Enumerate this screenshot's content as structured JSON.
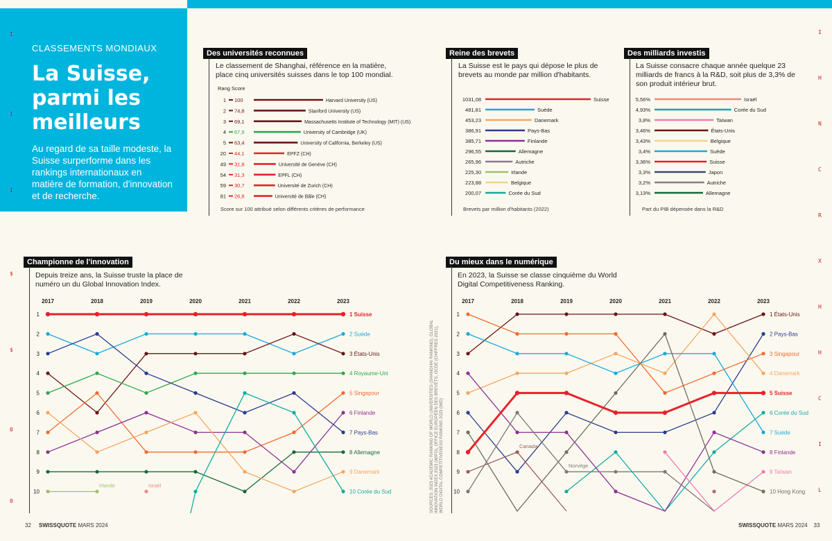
{
  "hero": {
    "kicker": "CLASSEMENTS MONDIAUX",
    "title_lines": [
      "La Suisse,",
      "parmi les",
      "meilleurs"
    ],
    "lead": "Au regard de sa taille modeste, la Suisse surperforme dans les rankings internationaux en matière de formation, d'innovation et de recherche."
  },
  "universities": {
    "label": "Des universités reconnues",
    "description": "Le classement de Shanghai, référence en la matière, place cinq universités suisses dans le top 100 mondial.",
    "col_rank": "Rang",
    "col_score": "Score",
    "footnote": "Score sur 100 attribué selon différents critères de performance"
  },
  "patents": {
    "label": "Reine des brevets",
    "description": "La Suisse est le pays qui dépose le plus de brevets au monde par million d'habitants.",
    "footnote": "Brevets par million d'habitants (2022)"
  },
  "rd": {
    "label": "Des milliards investis",
    "description": "La Suisse consacre chaque année quelque 23 milliards de francs à la R&D, soit plus de 3,3% de son produit intérieur brut.",
    "footnote": "Part du PIB dépensée dans la R&D"
  },
  "innovation": {
    "label": "Championne de l'innovation",
    "description": "Depuis treize ans, la Suisse truste la place de numéro un du Global Innovation Index."
  },
  "digital": {
    "label": "Du mieux dans le numérique",
    "description": "En 2023, la Suisse se classe cinquième du World Digital Competitiveness Ranking."
  },
  "sources": "SOURCES: 2023 ACADEMIC RANKING OF WORLD UNIVERSITIES (SHANGHAI RANKING), GLOBAL INNOVATION INDEX 2023 (WIPO), OFFICE EUROPÉEN DES BREVETS, OCDE (CHIFFRES 2021), WORLD DIGITAL COMPETITIVENESS RANKING 2023 (IMD)",
  "footer": {
    "left_page": "32",
    "left_brand": "SWISSQUOTE",
    "left_issue": "MARS 2024",
    "right_brand": "SWISSQUOTE",
    "right_issue": "MARS 2024",
    "right_page": "33"
  },
  "side_letters_left": [
    "I",
    "I",
    "I",
    "$",
    "$",
    "0",
    "0"
  ],
  "side_letters_right": [
    "I",
    "H",
    "N",
    "C",
    "R",
    "X",
    "H",
    "H",
    "C",
    "I",
    "L"
  ],
  "chart_data": [
    {
      "type": "bar",
      "title": "Des universités reconnues",
      "orientation": "horizontal",
      "xlim": [
        0,
        100
      ],
      "rows": [
        {
          "rank": "1",
          "score": 100,
          "score_label": "100",
          "name": "Harvard University (US)",
          "swiss": false,
          "color": "#6b1414"
        },
        {
          "rank": "2",
          "score": 74.8,
          "score_label": "74,8",
          "name": "Stanford University (US)",
          "swiss": false,
          "color": "#6b1414"
        },
        {
          "rank": "3",
          "score": 69.1,
          "score_label": "69,1",
          "name": "Massachusetts Institute of Technology (MIT) (US)",
          "swiss": false,
          "color": "#6b1414"
        },
        {
          "rank": "4",
          "score": 67.9,
          "score_label": "67,9",
          "name": "University of Cambridge (UK)",
          "swiss": false,
          "color": "#2fa84f"
        },
        {
          "rank": "5",
          "score": 63.4,
          "score_label": "63,4",
          "name": "University of California, Berkeley (US)",
          "swiss": false,
          "color": "#6b1414"
        },
        {
          "rank": "20",
          "score": 44.1,
          "score_label": "44,1",
          "name": "EPFZ (CH)",
          "swiss": true,
          "color": "#e8202a"
        },
        {
          "rank": "49",
          "score": 31.8,
          "score_label": "31,8",
          "name": "Université de Genève (CH)",
          "swiss": true,
          "color": "#e8202a"
        },
        {
          "rank": "54",
          "score": 31.3,
          "score_label": "31,3",
          "name": "EPFL (CH)",
          "swiss": true,
          "color": "#e8202a"
        },
        {
          "rank": "59",
          "score": 30.7,
          "score_label": "30,7",
          "name": "Université de Zurich (CH)",
          "swiss": true,
          "color": "#e8202a"
        },
        {
          "rank": "81",
          "score": 26.8,
          "score_label": "26,8",
          "name": "Université de Bâle (CH)",
          "swiss": true,
          "color": "#e8202a"
        }
      ]
    },
    {
      "type": "bar",
      "title": "Reine des brevets",
      "orientation": "horizontal",
      "xlim": [
        0,
        1031.08
      ],
      "rows": [
        {
          "value": 1031.08,
          "label": "1031,08",
          "country": "Suisse",
          "color": "#e8202a"
        },
        {
          "value": 481.81,
          "label": "481,81",
          "country": "Suède",
          "color": "#19a9dc"
        },
        {
          "value": 453.23,
          "label": "453,23",
          "country": "Danemark",
          "color": "#f5a661"
        },
        {
          "value": 386.91,
          "label": "386,91",
          "country": "Pays-Bas",
          "color": "#2a3b8f"
        },
        {
          "value": 385.71,
          "label": "385,71",
          "country": "Finlande",
          "color": "#8e3096"
        },
        {
          "value": 296.55,
          "label": "296,55",
          "country": "Allemagne",
          "color": "#13693a"
        },
        {
          "value": 265.96,
          "label": "265,96",
          "country": "Autriche",
          "color": "#8a7a8e"
        },
        {
          "value": 225.3,
          "label": "225,30",
          "country": "Irlande",
          "color": "#9cc26b"
        },
        {
          "value": 223.88,
          "label": "223,88",
          "country": "Belgique",
          "color": "#f4d48a"
        },
        {
          "value": 200.07,
          "label": "200,07",
          "country": "Corée du Sud",
          "color": "#12aaa4"
        }
      ]
    },
    {
      "type": "bar",
      "title": "Des milliards investis",
      "orientation": "horizontal",
      "rows": [
        {
          "value": 5.56,
          "label": "5,56%",
          "country": "Israël",
          "color": "#f08878"
        },
        {
          "value": 4.93,
          "label": "4,93%",
          "country": "Corée du Sud",
          "color": "#12aaa4"
        },
        {
          "value": 3.8,
          "label": "3,8%",
          "country": "Taïwan",
          "color": "#f07ab6"
        },
        {
          "value": 3.46,
          "label": "3,46%",
          "country": "États-Unis",
          "color": "#6b1414"
        },
        {
          "value": 3.43,
          "label": "3,43%",
          "country": "Belgique",
          "color": "#f4d48a"
        },
        {
          "value": 3.4,
          "label": "3,4%",
          "country": "Suède",
          "color": "#19a9dc"
        },
        {
          "value": 3.36,
          "label": "3,36%",
          "country": "Suisse",
          "color": "#e8202a"
        },
        {
          "value": 3.3,
          "label": "3,3%",
          "country": "Japon",
          "color": "#3a4a6e"
        },
        {
          "value": 3.2,
          "label": "3,2%",
          "country": "Autriche",
          "color": "#8a7a8e"
        },
        {
          "value": 3.13,
          "label": "3,13%",
          "country": "Allemagne",
          "color": "#13693a"
        }
      ]
    },
    {
      "type": "line",
      "subtype": "bump",
      "title": "Championne de l'innovation",
      "x": [
        "2017",
        "2018",
        "2019",
        "2020",
        "2021",
        "2022",
        "2023"
      ],
      "y_ticks": [
        "1",
        "2",
        "3",
        "4",
        "5",
        "6",
        "7",
        "8",
        "9",
        "10"
      ],
      "ylim": [
        1,
        10
      ],
      "series": [
        {
          "name": "Suisse",
          "end_label": "1 Suisse",
          "color": "#e8202a",
          "bold": true,
          "values": [
            1,
            1,
            1,
            1,
            1,
            1,
            1
          ]
        },
        {
          "name": "Suède",
          "end_label": "2 Suède",
          "color": "#19a9dc",
          "values": [
            2,
            3,
            2,
            2,
            2,
            3,
            2
          ]
        },
        {
          "name": "États-Unis",
          "end_label": "3 États-Unis",
          "color": "#6b1414",
          "values": [
            4,
            6,
            3,
            3,
            3,
            2,
            3
          ]
        },
        {
          "name": "Royaume-Uni",
          "end_label": "4 Royaume-Uni",
          "color": "#2fa84f",
          "values": [
            5,
            4,
            5,
            4,
            4,
            4,
            4
          ]
        },
        {
          "name": "Singapour",
          "end_label": "5 Singapour",
          "color": "#f26a2e",
          "values": [
            7,
            5,
            8,
            8,
            8,
            7,
            5
          ]
        },
        {
          "name": "Finlande",
          "end_label": "6 Finlande",
          "color": "#8e3096",
          "values": [
            8,
            7,
            6,
            7,
            7,
            9,
            6
          ]
        },
        {
          "name": "Pays-Bas",
          "end_label": "7 Pays-Bas",
          "color": "#2a3b8f",
          "values": [
            3,
            2,
            4,
            5,
            6,
            5,
            7
          ]
        },
        {
          "name": "Allemagne",
          "end_label": "8 Allemagne",
          "color": "#13693a",
          "values": [
            9,
            9,
            9,
            9,
            10,
            8,
            8
          ]
        },
        {
          "name": "Danemark",
          "end_label": "9 Danemark",
          "color": "#f5a661",
          "values": [
            6,
            8,
            7,
            6,
            9,
            10,
            9
          ]
        },
        {
          "name": "Corée du Sud",
          "end_label": "10 Corée du Sud",
          "color": "#12aaa4",
          "values": [
            null,
            null,
            null,
            10,
            5,
            6,
            10
          ],
          "entry_from_below": 3
        },
        {
          "name": "Irlande",
          "end_label": null,
          "color": "#9cc26b",
          "values": [
            10,
            10,
            null,
            null,
            null,
            null,
            null
          ],
          "annotation": {
            "text": "Irlande",
            "at": 1
          }
        },
        {
          "name": "Israël",
          "end_label": null,
          "color": "#f08878",
          "values": [
            null,
            null,
            10,
            null,
            null,
            null,
            null
          ],
          "annotation": {
            "text": "Israël",
            "at": 2
          }
        }
      ]
    },
    {
      "type": "line",
      "subtype": "bump",
      "title": "Du mieux dans le numérique",
      "x": [
        "2017",
        "2018",
        "2019",
        "2020",
        "2021",
        "2022",
        "2023"
      ],
      "y_ticks": [
        "1",
        "2",
        "3",
        "4",
        "5",
        "6",
        "7",
        "8",
        "9",
        "10"
      ],
      "ylim": [
        1,
        10
      ],
      "series": [
        {
          "name": "États-Unis",
          "end_label": "1 États-Unis",
          "color": "#6b1414",
          "values": [
            3,
            1,
            1,
            1,
            1,
            2,
            1
          ]
        },
        {
          "name": "Pays-Bas",
          "end_label": "2 Pays-Bas",
          "color": "#2a3b8f",
          "values": [
            6,
            9,
            6,
            7,
            7,
            6,
            2
          ]
        },
        {
          "name": "Singapour",
          "end_label": "3 Singapour",
          "color": "#f26a2e",
          "values": [
            1,
            2,
            2,
            2,
            5,
            4,
            3
          ]
        },
        {
          "name": "Danemark",
          "end_label": "4 Danemark",
          "color": "#f5a661",
          "values": [
            5,
            4,
            4,
            3,
            4,
            1,
            4
          ]
        },
        {
          "name": "Suisse",
          "end_label": "5 Suisse",
          "color": "#e8202a",
          "bold": true,
          "values": [
            8,
            5,
            5,
            6,
            6,
            5,
            5
          ]
        },
        {
          "name": "Corée du Sud",
          "end_label": "6 Corée du Sud",
          "color": "#12aaa4",
          "values": [
            null,
            null,
            10,
            8,
            11,
            8,
            6
          ]
        },
        {
          "name": "Suède",
          "end_label": "7 Suède",
          "color": "#19a9dc",
          "values": [
            2,
            3,
            3,
            4,
            3,
            3,
            7
          ]
        },
        {
          "name": "Finlande",
          "end_label": "8 Finlande",
          "color": "#8e3096",
          "values": [
            4,
            7,
            7,
            10,
            11,
            7,
            8
          ]
        },
        {
          "name": "Taïwan",
          "end_label": "9 Taïwan",
          "color": "#f07ab6",
          "values": [
            null,
            null,
            null,
            null,
            8,
            11,
            9
          ]
        },
        {
          "name": "Hong Kong",
          "end_label": "10 Hong Kong",
          "color": "#6e6e5e",
          "values": [
            7,
            11,
            8,
            5,
            2,
            9,
            10
          ]
        },
        {
          "name": "Canada",
          "end_label": null,
          "color": "#9a5a5a",
          "values": [
            9,
            8,
            11,
            null,
            null,
            null,
            null
          ],
          "annotation": {
            "text": "Canada",
            "at": 1
          }
        },
        {
          "name": "Norvège",
          "end_label": null,
          "color": "#7a7a7a",
          "values": [
            10,
            6,
            9,
            9,
            9,
            11,
            null
          ],
          "annotation": {
            "text": "Norvège",
            "at": 2
          }
        },
        {
          "name": "Israël",
          "end_label": null,
          "color": "#b06a6a",
          "values": [
            null,
            null,
            null,
            null,
            null,
            10,
            null
          ]
        }
      ]
    }
  ]
}
